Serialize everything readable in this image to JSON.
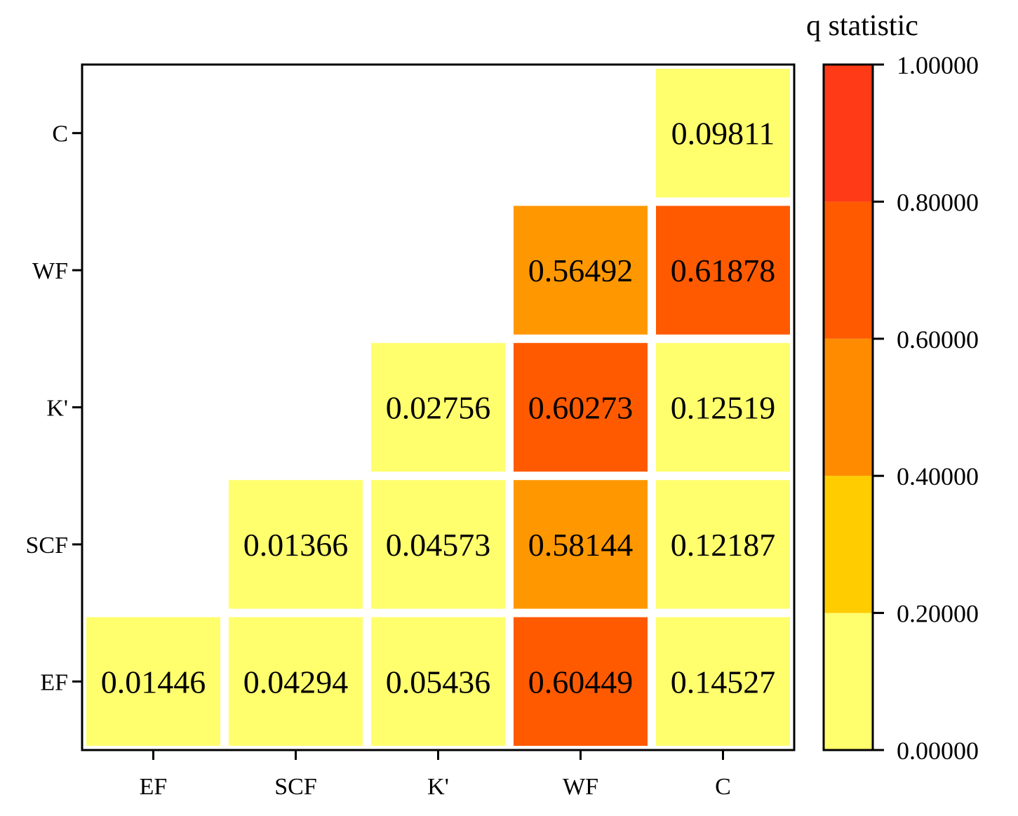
{
  "chart_data": {
    "type": "heatmap",
    "title": "",
    "xlabel": "",
    "ylabel": "",
    "x_categories": [
      "EF",
      "SCF",
      "K'",
      "WF",
      "C"
    ],
    "y_categories": [
      "EF",
      "SCF",
      "K'",
      "WF",
      "C"
    ],
    "cells": [
      {
        "x": "EF",
        "y": "EF",
        "value": 0.01446,
        "label": "0.01446"
      },
      {
        "x": "SCF",
        "y": "EF",
        "value": 0.04294,
        "label": "0.04294"
      },
      {
        "x": "K'",
        "y": "EF",
        "value": 0.05436,
        "label": "0.05436"
      },
      {
        "x": "WF",
        "y": "EF",
        "value": 0.60449,
        "label": "0.60449"
      },
      {
        "x": "C",
        "y": "EF",
        "value": 0.14527,
        "label": "0.14527"
      },
      {
        "x": "SCF",
        "y": "SCF",
        "value": 0.01366,
        "label": "0.01366"
      },
      {
        "x": "K'",
        "y": "SCF",
        "value": 0.04573,
        "label": "0.04573"
      },
      {
        "x": "WF",
        "y": "SCF",
        "value": 0.58144,
        "label": "0.58144"
      },
      {
        "x": "C",
        "y": "SCF",
        "value": 0.12187,
        "label": "0.12187"
      },
      {
        "x": "K'",
        "y": "K'",
        "value": 0.02756,
        "label": "0.02756"
      },
      {
        "x": "WF",
        "y": "K'",
        "value": 0.60273,
        "label": "0.60273"
      },
      {
        "x": "C",
        "y": "K'",
        "value": 0.12519,
        "label": "0.12519"
      },
      {
        "x": "WF",
        "y": "WF",
        "value": 0.56492,
        "label": "0.56492"
      },
      {
        "x": "C",
        "y": "WF",
        "value": 0.61878,
        "label": "0.61878"
      },
      {
        "x": "C",
        "y": "C",
        "value": 0.09811,
        "label": "0.09811"
      }
    ],
    "colorbar": {
      "title": "q statistic",
      "range": [
        0,
        1
      ],
      "ticks": [
        0,
        0.2,
        0.4,
        0.6,
        0.8,
        1.0
      ],
      "tick_labels": [
        "0.00000",
        "0.20000",
        "0.40000",
        "0.60000",
        "0.80000",
        "1.00000"
      ],
      "bands": [
        {
          "from": 0.0,
          "to": 0.2,
          "color": "#FFFF6E"
        },
        {
          "from": 0.2,
          "to": 0.4,
          "color": "#FFCC00"
        },
        {
          "from": 0.4,
          "to": 0.6,
          "color": "#FF8C00"
        },
        {
          "from": 0.6,
          "to": 0.8,
          "color": "#FF5A00"
        },
        {
          "from": 0.8,
          "to": 1.0,
          "color": "#FF3A16"
        }
      ]
    },
    "colors": {
      "low": "#FFFF6E",
      "mid_low": "#FFCC00",
      "mid": "#FF8C00",
      "mid_high": "#FF5A00",
      "high": "#FF3A16",
      "wf_medium": "#FF9800",
      "axis": "#000000"
    }
  }
}
